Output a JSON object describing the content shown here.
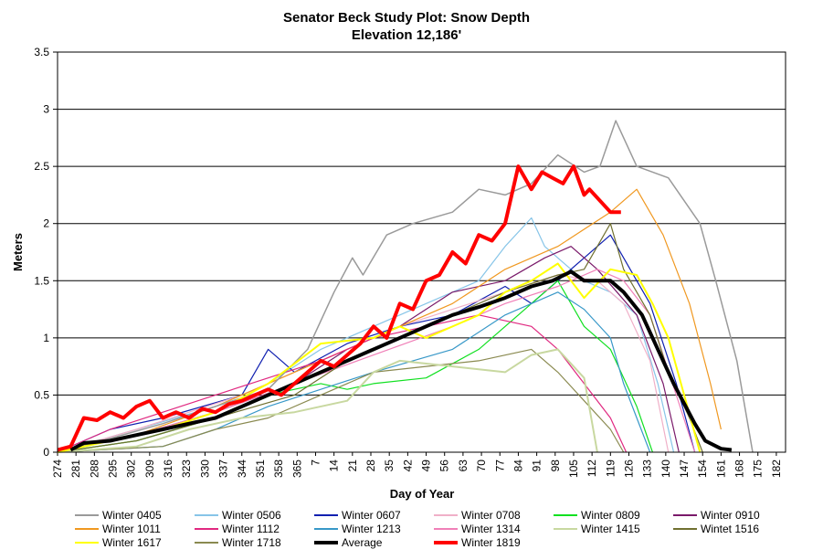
{
  "chart_data": {
    "type": "line",
    "title": "Senator Beck Study Plot:  Snow Depth",
    "subtitle": "Elevation 12,186'",
    "xlabel": "Day of Year",
    "ylabel": "Meters",
    "ylim": [
      0,
      3.5
    ],
    "yticks": [
      "0",
      "0.5",
      "1",
      "1.5",
      "2",
      "2.5",
      "3",
      "3.5"
    ],
    "xticks": [
      "274",
      "281",
      "288",
      "295",
      "302",
      "309",
      "316",
      "323",
      "330",
      "337",
      "344",
      "351",
      "358",
      "365",
      "7",
      "14",
      "21",
      "28",
      "35",
      "42",
      "49",
      "56",
      "63",
      "70",
      "77",
      "84",
      "91",
      "98",
      "105",
      "112",
      "119",
      "126",
      "133",
      "140",
      "147",
      "154",
      "161",
      "168",
      "175",
      "182"
    ],
    "grid": "horizontal",
    "legend_position": "bottom",
    "series": [
      {
        "name": "Winter 0405",
        "color": "#9a9a9a",
        "width": 1.5,
        "x": [
          0,
          20,
          40,
          60,
          80,
          95,
          105,
          112,
          116,
          125,
          135,
          150,
          160,
          170,
          180,
          190,
          200,
          206,
          212,
          220,
          232,
          244,
          250,
          258,
          264
        ],
        "y": [
          0,
          0.12,
          0.25,
          0.4,
          0.55,
          0.9,
          1.4,
          1.7,
          1.55,
          1.9,
          2.0,
          2.1,
          2.3,
          2.25,
          2.35,
          2.6,
          2.45,
          2.5,
          2.9,
          2.5,
          2.4,
          2.0,
          1.5,
          0.8,
          0
        ]
      },
      {
        "name": "Winter 0506",
        "color": "#87c5e8",
        "width": 1.2,
        "x": [
          0,
          30,
          60,
          80,
          100,
          120,
          140,
          160,
          170,
          180,
          185,
          190,
          200,
          210,
          220,
          228,
          234
        ],
        "y": [
          0,
          0.2,
          0.4,
          0.6,
          0.9,
          1.1,
          1.3,
          1.5,
          1.8,
          2.05,
          1.8,
          1.7,
          1.5,
          1.4,
          1.2,
          0.6,
          0
        ]
      },
      {
        "name": "Winter 0607",
        "color": "#1020b0",
        "width": 1.2,
        "x": [
          0,
          20,
          40,
          70,
          80,
          90,
          110,
          130,
          150,
          170,
          180,
          200,
          210,
          220,
          225,
          235,
          242
        ],
        "y": [
          0,
          0.2,
          0.3,
          0.5,
          0.9,
          0.7,
          0.95,
          1.1,
          1.2,
          1.45,
          1.3,
          1.7,
          1.9,
          1.5,
          1.3,
          0.6,
          0
        ]
      },
      {
        "name": "Winter 0708",
        "color": "#f0b0c8",
        "width": 1.2,
        "x": [
          0,
          30,
          50,
          70,
          90,
          110,
          130,
          150,
          170,
          190,
          205,
          215,
          225,
          232
        ],
        "y": [
          0,
          0.2,
          0.35,
          0.5,
          0.7,
          0.9,
          1.1,
          1.25,
          1.4,
          1.55,
          1.5,
          1.3,
          0.8,
          0
        ]
      },
      {
        "name": "Winter 0809",
        "color": "#10e020",
        "width": 1.2,
        "x": [
          0,
          30,
          60,
          80,
          100,
          110,
          120,
          140,
          160,
          180,
          190,
          200,
          210,
          220,
          226
        ],
        "y": [
          0,
          0.1,
          0.3,
          0.5,
          0.6,
          0.55,
          0.6,
          0.65,
          0.9,
          1.3,
          1.5,
          1.1,
          0.9,
          0.4,
          0
        ]
      },
      {
        "name": "Winter 0910",
        "color": "#7a1a6a",
        "width": 1.2,
        "x": [
          0,
          30,
          60,
          90,
          110,
          130,
          150,
          170,
          185,
          195,
          205,
          220,
          230,
          236
        ],
        "y": [
          0,
          0.15,
          0.35,
          0.6,
          0.9,
          1.1,
          1.4,
          1.5,
          1.7,
          1.8,
          1.6,
          1.2,
          0.6,
          0
        ]
      },
      {
        "name": "Winter 1011",
        "color": "#f09820",
        "width": 1.2,
        "x": [
          0,
          30,
          60,
          90,
          120,
          150,
          170,
          190,
          210,
          220,
          230,
          240,
          248,
          252
        ],
        "y": [
          0,
          0.15,
          0.4,
          0.7,
          1.0,
          1.3,
          1.6,
          1.8,
          2.1,
          2.3,
          1.9,
          1.3,
          0.6,
          0.2
        ]
      },
      {
        "name": "Winter 1112",
        "color": "#e02880",
        "width": 1.2,
        "x": [
          0,
          20,
          40,
          60,
          80,
          100,
          120,
          140,
          160,
          180,
          190,
          200,
          210,
          216
        ],
        "y": [
          0,
          0.2,
          0.35,
          0.5,
          0.65,
          0.8,
          1.0,
          1.1,
          1.2,
          1.1,
          0.9,
          0.6,
          0.3,
          0
        ]
      },
      {
        "name": "Winter 1213",
        "color": "#3898c8",
        "width": 1.2,
        "x": [
          0,
          40,
          60,
          80,
          100,
          120,
          150,
          170,
          190,
          200,
          210,
          215,
          220,
          225
        ],
        "y": [
          0,
          0.05,
          0.2,
          0.4,
          0.55,
          0.7,
          0.9,
          1.2,
          1.4,
          1.25,
          1.0,
          0.6,
          0.3,
          0
        ]
      },
      {
        "name": "Winter 1314",
        "color": "#f080b8",
        "width": 1.2,
        "x": [
          0,
          30,
          60,
          90,
          120,
          150,
          170,
          190,
          205,
          215,
          225,
          235,
          242
        ],
        "y": [
          0,
          0.15,
          0.35,
          0.6,
          0.85,
          1.1,
          1.3,
          1.45,
          1.6,
          1.5,
          1.2,
          0.5,
          0
        ]
      },
      {
        "name": "Winter 1415",
        "color": "#c8d8a0",
        "width": 2.0,
        "x": [
          0,
          30,
          50,
          70,
          90,
          110,
          120,
          130,
          150,
          170,
          180,
          190,
          200,
          205
        ],
        "y": [
          0,
          0.05,
          0.2,
          0.3,
          0.35,
          0.45,
          0.7,
          0.8,
          0.75,
          0.7,
          0.85,
          0.9,
          0.65,
          0
        ]
      },
      {
        "name": "Wintet 1516",
        "color": "#707030",
        "width": 1.2,
        "x": [
          0,
          30,
          60,
          90,
          110,
          130,
          150,
          170,
          190,
          200,
          210,
          215,
          225,
          232,
          240,
          245
        ],
        "y": [
          0,
          0.1,
          0.3,
          0.5,
          0.8,
          1.0,
          1.2,
          1.4,
          1.55,
          1.6,
          2.0,
          1.6,
          1.2,
          0.7,
          0.3,
          0
        ]
      },
      {
        "name": "Winter 1617",
        "color": "#ffff00",
        "width": 2.0,
        "x": [
          0,
          20,
          40,
          60,
          80,
          100,
          120,
          130,
          140,
          160,
          170,
          180,
          190,
          200,
          210,
          220,
          226,
          232,
          238,
          244
        ],
        "y": [
          0,
          0.1,
          0.2,
          0.35,
          0.6,
          0.95,
          1.0,
          1.1,
          1.0,
          1.2,
          1.4,
          1.5,
          1.65,
          1.35,
          1.6,
          1.55,
          1.3,
          1.0,
          0.5,
          0
        ]
      },
      {
        "name": "Winter 1718",
        "color": "#8a8a50",
        "width": 1.2,
        "x": [
          0,
          40,
          60,
          80,
          100,
          120,
          140,
          160,
          180,
          190,
          200,
          210,
          215
        ],
        "y": [
          0,
          0.05,
          0.2,
          0.3,
          0.5,
          0.7,
          0.75,
          0.8,
          0.9,
          0.7,
          0.45,
          0.2,
          0
        ]
      },
      {
        "name": "Average",
        "color": "#000000",
        "width": 4.0,
        "x": [
          5,
          10,
          20,
          30,
          40,
          50,
          60,
          70,
          80,
          90,
          100,
          110,
          120,
          130,
          140,
          150,
          160,
          170,
          180,
          188,
          195,
          200,
          210,
          215,
          222,
          228,
          234,
          242,
          246,
          252,
          256
        ],
        "y": [
          0.02,
          0.08,
          0.1,
          0.15,
          0.2,
          0.25,
          0.3,
          0.4,
          0.5,
          0.6,
          0.7,
          0.8,
          0.9,
          1.0,
          1.1,
          1.2,
          1.27,
          1.35,
          1.45,
          1.5,
          1.58,
          1.5,
          1.5,
          1.4,
          1.2,
          0.9,
          0.6,
          0.25,
          0.1,
          0.03,
          0.02
        ]
      },
      {
        "name": "Winter 1819",
        "color": "#ff0000",
        "width": 4.0,
        "x": [
          0,
          5,
          10,
          15,
          20,
          25,
          30,
          35,
          40,
          45,
          50,
          55,
          60,
          65,
          70,
          75,
          80,
          85,
          90,
          95,
          100,
          105,
          110,
          115,
          120,
          125,
          130,
          135,
          140,
          145,
          150,
          155,
          160,
          165,
          170,
          175,
          180,
          184,
          188,
          192,
          196,
          200,
          202,
          206,
          210,
          214
        ],
        "y": [
          0.02,
          0.05,
          0.3,
          0.28,
          0.35,
          0.3,
          0.4,
          0.45,
          0.3,
          0.35,
          0.3,
          0.38,
          0.35,
          0.42,
          0.45,
          0.5,
          0.55,
          0.5,
          0.6,
          0.7,
          0.8,
          0.75,
          0.85,
          0.95,
          1.1,
          1.0,
          1.3,
          1.25,
          1.5,
          1.55,
          1.75,
          1.65,
          1.9,
          1.85,
          2.0,
          2.5,
          2.3,
          2.45,
          2.4,
          2.35,
          2.5,
          2.25,
          2.3,
          2.2,
          2.1,
          2.1
        ]
      }
    ]
  }
}
